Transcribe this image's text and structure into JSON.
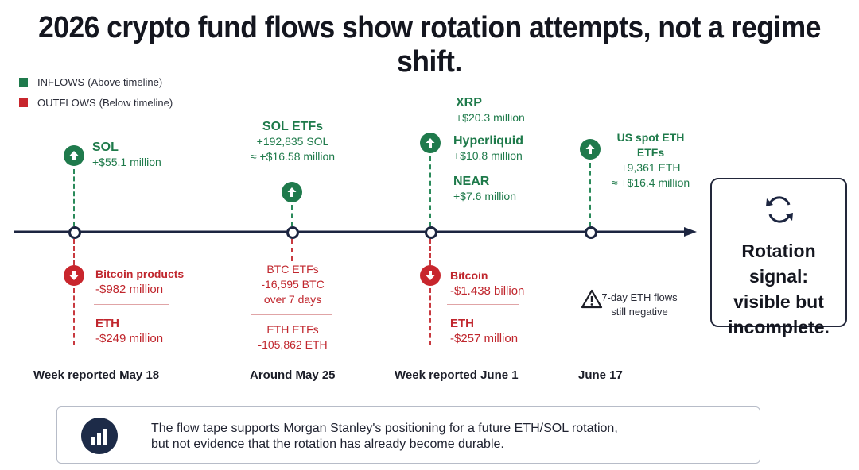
{
  "title": "2026 crypto fund flows show rotation attempts, not a regime shift.",
  "legend": {
    "inflows": {
      "label": "INFLOWS",
      "note": "(Above timeline)",
      "color": "#1f7a4c"
    },
    "outflows": {
      "label": "OUTFLOWS",
      "note": "(Below timeline)",
      "color": "#c8262d"
    }
  },
  "timeline": {
    "events": [
      {
        "period": "Week reported May 18",
        "inflows": [
          {
            "name": "SOL",
            "lines": [
              "+$55.1 million"
            ]
          }
        ],
        "outflows": [
          {
            "name": "Bitcoin products",
            "lines": [
              "-$982 million"
            ]
          },
          {
            "name": "ETH",
            "lines": [
              "-$249 million"
            ]
          }
        ]
      },
      {
        "period": "Around  May 25",
        "inflows": [
          {
            "name": "SOL ETFs",
            "lines": [
              "+192,835 SOL",
              "≈ +$16.58 million"
            ]
          }
        ],
        "outflows": [
          {
            "name": "BTC ETFs",
            "lines": [
              "-16,595 BTC",
              "over 7 days"
            ]
          },
          {
            "name": "ETH ETFs",
            "lines": [
              "-105,862 ETH"
            ]
          }
        ]
      },
      {
        "period": "Week reported June 1",
        "inflows": [
          {
            "name": "XRP",
            "lines": [
              "+$20.3 million"
            ]
          },
          {
            "name": "Hyperliquid",
            "lines": [
              "+$10.8 million"
            ]
          },
          {
            "name": "NEAR",
            "lines": [
              "+$7.6 million"
            ]
          }
        ],
        "outflows": [
          {
            "name": "Bitcoin",
            "lines": [
              "-$1.438 billion"
            ]
          },
          {
            "name": "ETH",
            "lines": [
              "-$257 million"
            ]
          }
        ]
      },
      {
        "period": "June 17",
        "inflows": [
          {
            "name": "US spot ETH ETFs",
            "lines": [
              "+9,361 ETH",
              "≈ +$16.4 million"
            ]
          }
        ],
        "note": {
          "lines": [
            "7-day ETH flows",
            "still negative"
          ],
          "icon": "warning-icon"
        }
      }
    ]
  },
  "signal": {
    "text": [
      "Rotation signal:",
      "visible but",
      "incomplete."
    ],
    "icon": "refresh-cycle-icon"
  },
  "summary": {
    "icon": "bar-chart-icon",
    "lines": [
      "The flow tape supports Morgan Stanley's positioning for a future ETH/SOL rotation,",
      "but not evidence that the rotation has already become durable."
    ]
  }
}
